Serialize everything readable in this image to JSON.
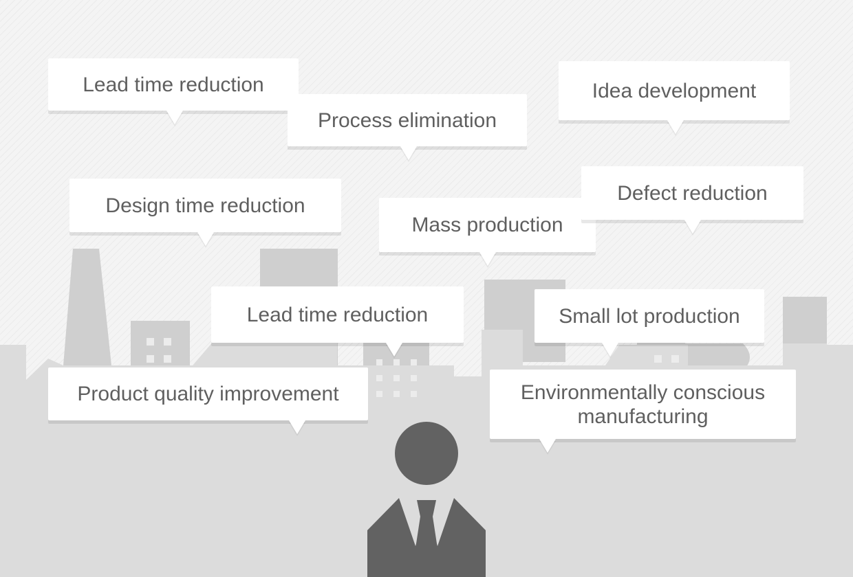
{
  "bubbles": [
    {
      "id": "lead-time-top",
      "text": "Lead time reduction"
    },
    {
      "id": "process-elimination",
      "text": "Process elimination"
    },
    {
      "id": "idea-development",
      "text": "Idea development"
    },
    {
      "id": "design-time",
      "text": "Design time reduction"
    },
    {
      "id": "mass-production",
      "text": "Mass production"
    },
    {
      "id": "defect-reduction",
      "text": "Defect reduction"
    },
    {
      "id": "lead-time-middle",
      "text": "Lead time reduction"
    },
    {
      "id": "small-lot",
      "text": "Small lot production"
    },
    {
      "id": "product-quality",
      "text": "Product quality improvement"
    },
    {
      "id": "environmental",
      "text": "Environmentally conscious manufacturing"
    }
  ],
  "colors": {
    "background": "#f4f4f4",
    "stripes": "#ebebeb",
    "skyline": "#dcdcdc",
    "factory_far": "#cfcfcf",
    "window": "#ececec",
    "person": "#626262",
    "bubble": "#ffffff",
    "text": "#5f5f5f"
  },
  "icons": {
    "person": "business-person-icon",
    "skyline": "factory-skyline-icon"
  }
}
